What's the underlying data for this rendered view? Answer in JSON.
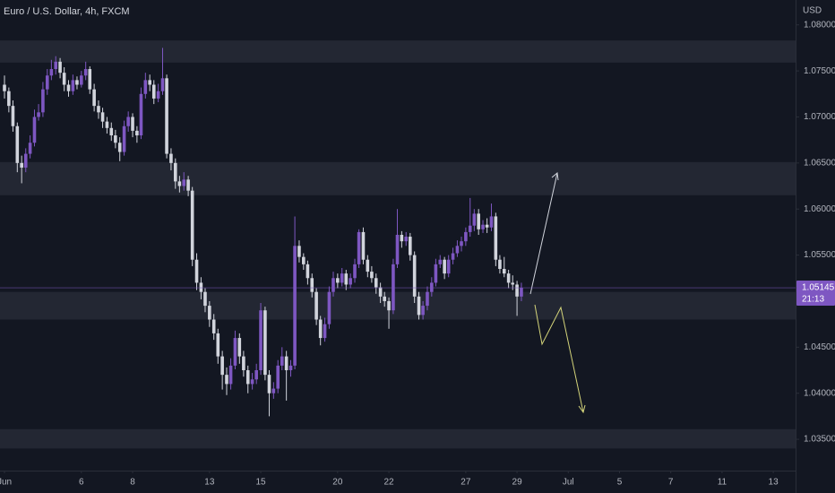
{
  "chart_data": {
    "type": "candlestick",
    "title": "Euro / U.S. Dollar, 4h, FXCM",
    "currency": "USD",
    "up_color": "#7e57c2",
    "down_color": "#d1d4dc",
    "zone_color": "#2a2e39",
    "grid": false,
    "last_price": 1.05145,
    "countdown": "21:13",
    "ylim": [
      1.0316,
      1.0827
    ],
    "xlim": [
      -0.175,
      30.87
    ],
    "yticks": [
      {
        "value": 1.035,
        "label": "1.03500"
      },
      {
        "value": 1.04,
        "label": "1.04000"
      },
      {
        "value": 1.045,
        "label": "1.04500"
      },
      {
        "value": 1.05,
        "label": "1.05000"
      },
      {
        "value": 1.055,
        "label": "1.05500"
      },
      {
        "value": 1.06,
        "label": "1.06000"
      },
      {
        "value": 1.065,
        "label": "1.06500"
      },
      {
        "value": 1.07,
        "label": "1.07000"
      },
      {
        "value": 1.075,
        "label": "1.07500"
      },
      {
        "value": 1.08,
        "label": "1.08000"
      }
    ],
    "xticks": [
      {
        "value": 0,
        "label": "Jun"
      },
      {
        "value": 3,
        "label": "6"
      },
      {
        "value": 5,
        "label": "8"
      },
      {
        "value": 8,
        "label": "13"
      },
      {
        "value": 10,
        "label": "15"
      },
      {
        "value": 13,
        "label": "20"
      },
      {
        "value": 15,
        "label": "22"
      },
      {
        "value": 18,
        "label": "27"
      },
      {
        "value": 20,
        "label": "29"
      },
      {
        "value": 22,
        "label": "Jul"
      },
      {
        "value": 24,
        "label": "5"
      },
      {
        "value": 26,
        "label": "7"
      },
      {
        "value": 28,
        "label": "11"
      },
      {
        "value": 30,
        "label": "13"
      }
    ],
    "zones": [
      [
        1.0759,
        1.0783
      ],
      [
        1.0615,
        1.0651
      ],
      [
        1.048,
        1.051
      ],
      [
        1.034,
        1.0361
      ]
    ],
    "x": [
      0,
      0.17,
      0.33,
      0.5,
      0.67,
      0.83,
      1,
      1.17,
      1.33,
      1.5,
      1.67,
      1.83,
      2,
      2.17,
      2.33,
      2.5,
      2.67,
      2.83,
      3,
      3.17,
      3.33,
      3.5,
      3.67,
      3.83,
      4,
      4.17,
      4.33,
      4.5,
      4.67,
      4.83,
      5,
      5.17,
      5.33,
      5.5,
      5.67,
      5.83,
      6,
      6.17,
      6.33,
      6.5,
      6.67,
      6.83,
      7,
      7.17,
      7.33,
      7.5,
      7.67,
      7.83,
      8,
      8.17,
      8.33,
      8.5,
      8.67,
      8.83,
      9,
      9.17,
      9.33,
      9.5,
      9.67,
      9.83,
      10,
      10.17,
      10.33,
      10.5,
      10.67,
      10.83,
      11,
      11.17,
      11.33,
      11.5,
      11.67,
      11.83,
      12,
      12.17,
      12.33,
      12.5,
      12.67,
      12.83,
      13,
      13.17,
      13.33,
      13.5,
      13.67,
      13.83,
      14,
      14.17,
      14.33,
      14.5,
      14.67,
      14.83,
      15,
      15.17,
      15.33,
      15.5,
      15.67,
      15.83,
      16,
      16.17,
      16.33,
      16.5,
      16.67,
      16.83,
      17,
      17.17,
      17.33,
      17.5,
      17.67,
      17.83,
      18,
      18.17,
      18.33,
      18.5,
      18.67,
      18.83,
      19,
      19.17,
      19.33,
      19.5,
      19.67,
      19.83,
      20,
      20.17
    ],
    "ohlc": [
      [
        1.0735,
        1.0745,
        1.072,
        1.0728
      ],
      [
        1.0728,
        1.0732,
        1.0705,
        1.0712
      ],
      [
        1.0712,
        1.0718,
        1.0684,
        1.069
      ],
      [
        1.069,
        1.0694,
        1.064,
        1.065
      ],
      [
        1.065,
        1.0658,
        1.0628,
        1.0645
      ],
      [
        1.0645,
        1.0666,
        1.064,
        1.066
      ],
      [
        1.066,
        1.068,
        1.0655,
        1.0672
      ],
      [
        1.0672,
        1.0708,
        1.0668,
        1.07
      ],
      [
        1.07,
        1.0714,
        1.0696,
        1.0705
      ],
      [
        1.0705,
        1.0738,
        1.07,
        1.073
      ],
      [
        1.073,
        1.0752,
        1.0724,
        1.0745
      ],
      [
        1.0745,
        1.0762,
        1.074,
        1.0752
      ],
      [
        1.0752,
        1.0766,
        1.0746,
        1.076
      ],
      [
        1.076,
        1.0764,
        1.0742,
        1.0748
      ],
      [
        1.0748,
        1.0754,
        1.0728,
        1.0735
      ],
      [
        1.0735,
        1.074,
        1.0722,
        1.0728
      ],
      [
        1.0728,
        1.0746,
        1.0724,
        1.074
      ],
      [
        1.074,
        1.0744,
        1.073,
        1.0735
      ],
      [
        1.0735,
        1.075,
        1.0732,
        1.0745
      ],
      [
        1.0745,
        1.076,
        1.074,
        1.0752
      ],
      [
        1.0752,
        1.0755,
        1.0725,
        1.073
      ],
      [
        1.073,
        1.0736,
        1.0706,
        1.0712
      ],
      [
        1.0712,
        1.0718,
        1.0698,
        1.0705
      ],
      [
        1.0705,
        1.071,
        1.0688,
        1.0695
      ],
      [
        1.0695,
        1.07,
        1.0682,
        1.0688
      ],
      [
        1.0688,
        1.0694,
        1.0674,
        1.068
      ],
      [
        1.068,
        1.0686,
        1.0666,
        1.0672
      ],
      [
        1.0672,
        1.0678,
        1.0652,
        1.0662
      ],
      [
        1.0662,
        1.0696,
        1.0658,
        1.069
      ],
      [
        1.069,
        1.0706,
        1.0684,
        1.07
      ],
      [
        1.07,
        1.0704,
        1.0678,
        1.0685
      ],
      [
        1.0685,
        1.069,
        1.0672,
        1.068
      ],
      [
        1.068,
        1.0732,
        1.0676,
        1.0725
      ],
      [
        1.0725,
        1.0748,
        1.072,
        1.074
      ],
      [
        1.074,
        1.0746,
        1.0728,
        1.0735
      ],
      [
        1.0735,
        1.074,
        1.0714,
        1.072
      ],
      [
        1.072,
        1.0736,
        1.0716,
        1.0728
      ],
      [
        1.0728,
        1.0775,
        1.0724,
        1.0742
      ],
      [
        1.0742,
        1.0746,
        1.0655,
        1.066
      ],
      [
        1.066,
        1.0666,
        1.0642,
        1.065
      ],
      [
        1.065,
        1.0655,
        1.0622,
        1.063
      ],
      [
        1.063,
        1.0636,
        1.0618,
        1.0625
      ],
      [
        1.0625,
        1.064,
        1.062,
        1.0632
      ],
      [
        1.0632,
        1.0636,
        1.0614,
        1.062
      ],
      [
        1.062,
        1.0624,
        1.0538,
        1.0545
      ],
      [
        1.0545,
        1.0552,
        1.0512,
        1.052
      ],
      [
        1.052,
        1.0526,
        1.0502,
        1.051
      ],
      [
        1.051,
        1.0514,
        1.0488,
        1.0495
      ],
      [
        1.0495,
        1.05,
        1.0472,
        1.048
      ],
      [
        1.048,
        1.0486,
        1.0458,
        1.0465
      ],
      [
        1.0465,
        1.047,
        1.0432,
        1.044
      ],
      [
        1.044,
        1.0446,
        1.0404,
        1.042
      ],
      [
        1.042,
        1.0428,
        1.0398,
        1.041
      ],
      [
        1.041,
        1.0438,
        1.0404,
        1.043
      ],
      [
        1.043,
        1.0468,
        1.0426,
        1.046
      ],
      [
        1.046,
        1.0465,
        1.0432,
        1.044
      ],
      [
        1.044,
        1.0446,
        1.0418,
        1.0425
      ],
      [
        1.0425,
        1.043,
        1.04,
        1.041
      ],
      [
        1.041,
        1.0422,
        1.0404,
        1.0415
      ],
      [
        1.0415,
        1.0432,
        1.041,
        1.0425
      ],
      [
        1.0425,
        1.0498,
        1.042,
        1.049
      ],
      [
        1.049,
        1.0494,
        1.0414,
        1.042
      ],
      [
        1.042,
        1.0425,
        1.0375,
        1.04
      ],
      [
        1.04,
        1.0412,
        1.0394,
        1.0405
      ],
      [
        1.0405,
        1.0436,
        1.04,
        1.043
      ],
      [
        1.043,
        1.045,
        1.0425,
        1.044
      ],
      [
        1.044,
        1.0446,
        1.0392,
        1.0425
      ],
      [
        1.0425,
        1.0436,
        1.0418,
        1.043
      ],
      [
        1.043,
        1.0592,
        1.0426,
        1.056
      ],
      [
        1.056,
        1.0566,
        1.0542,
        1.0548
      ],
      [
        1.0548,
        1.0552,
        1.0534,
        1.054
      ],
      [
        1.054,
        1.0544,
        1.0518,
        1.0525
      ],
      [
        1.0525,
        1.053,
        1.0504,
        1.051
      ],
      [
        1.051,
        1.0514,
        1.0474,
        1.048
      ],
      [
        1.048,
        1.0484,
        1.0452,
        1.046
      ],
      [
        1.046,
        1.0482,
        1.0456,
        1.0475
      ],
      [
        1.0475,
        1.0516,
        1.047,
        1.051
      ],
      [
        1.051,
        1.0532,
        1.0505,
        1.0525
      ],
      [
        1.0525,
        1.053,
        1.0514,
        1.052
      ],
      [
        1.052,
        1.0536,
        1.0516,
        1.053
      ],
      [
        1.053,
        1.0534,
        1.0512,
        1.0518
      ],
      [
        1.0518,
        1.053,
        1.0514,
        1.0525
      ],
      [
        1.0525,
        1.0546,
        1.052,
        1.054
      ],
      [
        1.054,
        1.0578,
        1.0536,
        1.0575
      ],
      [
        1.0575,
        1.058,
        1.054,
        1.0545
      ],
      [
        1.0545,
        1.055,
        1.0526,
        1.0532
      ],
      [
        1.0532,
        1.0538,
        1.052,
        1.0525
      ],
      [
        1.0525,
        1.053,
        1.0508,
        1.0515
      ],
      [
        1.0515,
        1.052,
        1.0498,
        1.0505
      ],
      [
        1.0505,
        1.051,
        1.0494,
        1.05
      ],
      [
        1.05,
        1.0504,
        1.047,
        1.049
      ],
      [
        1.049,
        1.0546,
        1.0486,
        1.054
      ],
      [
        1.054,
        1.06,
        1.0536,
        1.0572
      ],
      [
        1.0572,
        1.0576,
        1.0558,
        1.0565
      ],
      [
        1.0565,
        1.0575,
        1.056,
        1.057
      ],
      [
        1.057,
        1.0574,
        1.0544,
        1.055
      ],
      [
        1.055,
        1.0554,
        1.0498,
        1.0505
      ],
      [
        1.0505,
        1.051,
        1.048,
        1.0485
      ],
      [
        1.0485,
        1.05,
        1.048,
        1.0495
      ],
      [
        1.0495,
        1.0516,
        1.049,
        1.051
      ],
      [
        1.051,
        1.0526,
        1.0505,
        1.052
      ],
      [
        1.052,
        1.0546,
        1.0516,
        1.054
      ],
      [
        1.054,
        1.055,
        1.0536,
        1.0545
      ],
      [
        1.0545,
        1.0548,
        1.0524,
        1.053
      ],
      [
        1.053,
        1.055,
        1.0526,
        1.0545
      ],
      [
        1.0545,
        1.0558,
        1.054,
        1.0552
      ],
      [
        1.0552,
        1.0566,
        1.0548,
        1.056
      ],
      [
        1.056,
        1.057,
        1.0554,
        1.0565
      ],
      [
        1.0565,
        1.058,
        1.056,
        1.0575
      ],
      [
        1.0575,
        1.0612,
        1.057,
        1.0582
      ],
      [
        1.0582,
        1.06,
        1.0576,
        1.0595
      ],
      [
        1.0595,
        1.06,
        1.0572,
        1.0578
      ],
      [
        1.0578,
        1.0588,
        1.0574,
        1.0583
      ],
      [
        1.0583,
        1.059,
        1.0574,
        1.058
      ],
      [
        1.058,
        1.0606,
        1.0576,
        1.0592
      ],
      [
        1.0592,
        1.0596,
        1.0538,
        1.0545
      ],
      [
        1.0545,
        1.055,
        1.053,
        1.0535
      ],
      [
        1.0535,
        1.0548,
        1.0526,
        1.053
      ],
      [
        1.053,
        1.0534,
        1.0514,
        1.052
      ],
      [
        1.052,
        1.0528,
        1.0512,
        1.0518
      ],
      [
        1.0518,
        1.0522,
        1.0484,
        1.0505
      ],
      [
        1.0505,
        1.052,
        1.05,
        1.05145
      ]
    ]
  }
}
